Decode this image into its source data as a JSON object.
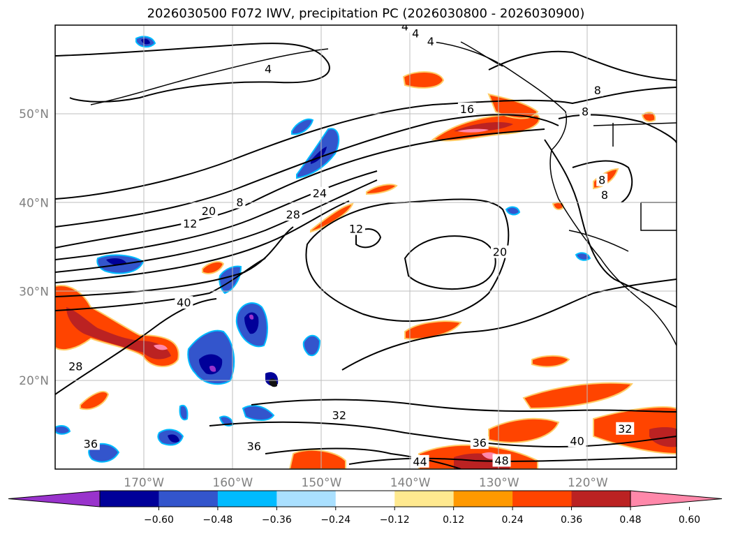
{
  "chart_data": {
    "type": "map-contour",
    "title": "2026030500 F072 IWV, precipitation PC (2026030800 - 2026030900)",
    "x_ticks": [
      "170°W",
      "160°W",
      "150°W",
      "140°W",
      "130°W",
      "120°W"
    ],
    "x_tick_values": [
      -170,
      -160,
      -150,
      -140,
      -130,
      -120
    ],
    "y_ticks": [
      "50°N",
      "40°N",
      "30°N",
      "20°N"
    ],
    "y_tick_values": [
      50,
      40,
      30,
      20
    ],
    "lon_range": [
      -180,
      -110
    ],
    "lat_range": [
      10,
      60
    ],
    "contour_labels": [
      {
        "text": "4",
        "lon": -156,
        "lat": 55.0
      },
      {
        "text": "4",
        "lon": -140.6,
        "lat": 59.8
      },
      {
        "text": "4",
        "lon": -139.4,
        "lat": 59.0
      },
      {
        "text": "4",
        "lon": -137.7,
        "lat": 58.1
      },
      {
        "text": "8",
        "lon": -118.9,
        "lat": 52.6
      },
      {
        "text": "8",
        "lon": -120.3,
        "lat": 50.2
      },
      {
        "text": "8",
        "lon": -118.4,
        "lat": 42.5
      },
      {
        "text": "8",
        "lon": -118.1,
        "lat": 40.8
      },
      {
        "text": "8",
        "lon": -159.2,
        "lat": 40.0
      },
      {
        "text": "12",
        "lon": -164.8,
        "lat": 37.6
      },
      {
        "text": "12",
        "lon": -146.1,
        "lat": 37.0
      },
      {
        "text": "16",
        "lon": -133.6,
        "lat": 50.5
      },
      {
        "text": "20",
        "lon": -162.7,
        "lat": 39.0
      },
      {
        "text": "20",
        "lon": -129.9,
        "lat": 34.4
      },
      {
        "text": "24",
        "lon": -150.2,
        "lat": 41.0
      },
      {
        "text": "28",
        "lon": -153.2,
        "lat": 38.6
      },
      {
        "text": "28",
        "lon": -177.7,
        "lat": 21.5
      },
      {
        "text": "32",
        "lon": -148.0,
        "lat": 16.0
      },
      {
        "text": "32",
        "lon": -115.8,
        "lat": 14.5
      },
      {
        "text": "36",
        "lon": -157.6,
        "lat": 12.5
      },
      {
        "text": "36",
        "lon": -132.2,
        "lat": 12.9
      },
      {
        "text": "36",
        "lon": -176.0,
        "lat": 12.8
      },
      {
        "text": "40",
        "lon": -165.5,
        "lat": 28.7
      },
      {
        "text": "40",
        "lon": -121.2,
        "lat": 13.1
      },
      {
        "text": "44",
        "lon": -138.9,
        "lat": 10.8
      },
      {
        "text": "48",
        "lon": -129.7,
        "lat": 10.9
      }
    ],
    "colorbar": {
      "ticks": [
        "−0.60",
        "−0.48",
        "−0.36",
        "−0.24",
        "−0.12",
        "0.12",
        "0.24",
        "0.36",
        "0.48",
        "0.60"
      ],
      "levels": [
        -0.6,
        -0.48,
        -0.36,
        -0.24,
        -0.12,
        0.12,
        0.24,
        0.36,
        0.48,
        0.6
      ],
      "colors": [
        "#9933cc",
        "#000099",
        "#3355cc",
        "#00bbff",
        "#aae0ff",
        "#ffffff",
        "#ffe98f",
        "#ff9900",
        "#ff4400",
        "#bb2222",
        "#ff88aa"
      ]
    }
  }
}
